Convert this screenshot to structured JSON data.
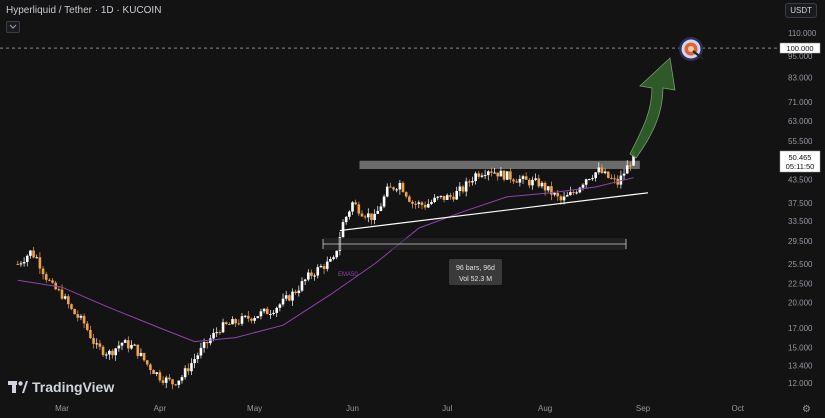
{
  "header": {
    "symbol": "Hyperliquid / Tether · 1D · KUCOIN"
  },
  "currency": "USDT",
  "logo_text": "TradingView",
  "ema_label": "EMA50",
  "measure": {
    "line1": "96 bars, 96d",
    "line2": "Vol 52.3 M"
  },
  "price_label": {
    "price": "50.465",
    "countdown": "05:11:50"
  },
  "target_label": "100.000",
  "colors": {
    "background": "#131313",
    "up": "#ffffff",
    "down": "#f0a24a",
    "ema": "#8e44ad",
    "arrow": "#2f5e2a",
    "resistance": "#8a8a8a"
  },
  "chart_data": {
    "type": "candlestick",
    "title": "Hyperliquid / Tether · 1D · KUCOIN",
    "scale": "log",
    "x_ticks": [
      "Mar",
      "Apr",
      "May",
      "Jun",
      "Jul",
      "Aug",
      "Sep",
      "Oct"
    ],
    "y_ticks": [
      "110.000",
      "95.000",
      "83.000",
      "71.000",
      "63.000",
      "55.500",
      "43.500",
      "37.500",
      "33.500",
      "29.500",
      "25.500",
      "22.500",
      "20.000",
      "17.000",
      "15.000",
      "13.400",
      "12.000"
    ],
    "ylim": [
      11.0,
      120.0
    ],
    "close_path": [
      [
        "2025-02-15",
        25.5
      ],
      [
        "2025-02-19",
        27.5
      ],
      [
        "2025-02-21",
        26.5
      ],
      [
        "2025-02-24",
        23.5
      ],
      [
        "2025-02-26",
        22.0
      ],
      [
        "2025-03-01",
        21.0
      ],
      [
        "2025-03-04",
        19.0
      ],
      [
        "2025-03-08",
        17.5
      ],
      [
        "2025-03-12",
        15.0
      ],
      [
        "2025-03-16",
        14.5
      ],
      [
        "2025-03-20",
        15.5
      ],
      [
        "2025-03-24",
        15.0
      ],
      [
        "2025-03-28",
        13.5
      ],
      [
        "2025-04-01",
        12.5
      ],
      [
        "2025-04-05",
        12.0
      ],
      [
        "2025-04-08",
        12.5
      ],
      [
        "2025-04-12",
        14.0
      ],
      [
        "2025-04-16",
        15.5
      ],
      [
        "2025-04-20",
        17.0
      ],
      [
        "2025-04-24",
        17.5
      ],
      [
        "2025-04-28",
        18.0
      ],
      [
        "2025-05-02",
        18.5
      ],
      [
        "2025-05-06",
        19.0
      ],
      [
        "2025-05-10",
        20.0
      ],
      [
        "2025-05-14",
        21.5
      ],
      [
        "2025-05-18",
        23.5
      ],
      [
        "2025-05-22",
        25.0
      ],
      [
        "2025-05-26",
        26.0
      ],
      [
        "2025-05-29",
        33.0
      ],
      [
        "2025-06-01",
        37.5
      ],
      [
        "2025-06-04",
        35.5
      ],
      [
        "2025-06-08",
        34.0
      ],
      [
        "2025-06-12",
        40.5
      ],
      [
        "2025-06-16",
        42.5
      ],
      [
        "2025-06-20",
        37.5
      ],
      [
        "2025-06-24",
        37.0
      ],
      [
        "2025-06-28",
        38.5
      ],
      [
        "2025-07-02",
        39.0
      ],
      [
        "2025-07-06",
        41.0
      ],
      [
        "2025-07-10",
        45.0
      ],
      [
        "2025-07-14",
        46.5
      ],
      [
        "2025-07-18",
        45.0
      ],
      [
        "2025-07-22",
        44.0
      ],
      [
        "2025-07-26",
        43.0
      ],
      [
        "2025-07-30",
        42.5
      ],
      [
        "2025-08-03",
        40.0
      ],
      [
        "2025-08-06",
        38.0
      ],
      [
        "2025-08-10",
        40.0
      ],
      [
        "2025-08-14",
        44.0
      ],
      [
        "2025-08-18",
        46.0
      ],
      [
        "2025-08-21",
        44.0
      ],
      [
        "2025-08-24",
        42.5
      ],
      [
        "2025-08-27",
        47.0
      ],
      [
        "2025-08-29",
        50.465
      ]
    ],
    "ema50_path": [
      [
        "2025-02-15",
        23.0
      ],
      [
        "2025-03-01",
        22.0
      ],
      [
        "2025-03-15",
        19.5
      ],
      [
        "2025-04-01",
        17.0
      ],
      [
        "2025-04-12",
        15.6
      ],
      [
        "2025-04-25",
        16.0
      ],
      [
        "2025-05-10",
        17.3
      ],
      [
        "2025-05-25",
        21.0
      ],
      [
        "2025-06-08",
        25.5
      ],
      [
        "2025-06-22",
        32.0
      ],
      [
        "2025-07-06",
        35.5
      ],
      [
        "2025-07-20",
        39.0
      ],
      [
        "2025-08-03",
        40.0
      ],
      [
        "2025-08-17",
        41.5
      ],
      [
        "2025-08-29",
        44.0
      ]
    ],
    "resistance_zone": {
      "start": "2025-06-01",
      "end": "2025-09-01",
      "low": 46.5,
      "high": 49.0
    },
    "trendline": {
      "start": [
        "2025-05-28",
        31.5
      ],
      "end": [
        "2025-09-01",
        40.0
      ]
    },
    "target": 100.0,
    "last_price": 50.465
  }
}
